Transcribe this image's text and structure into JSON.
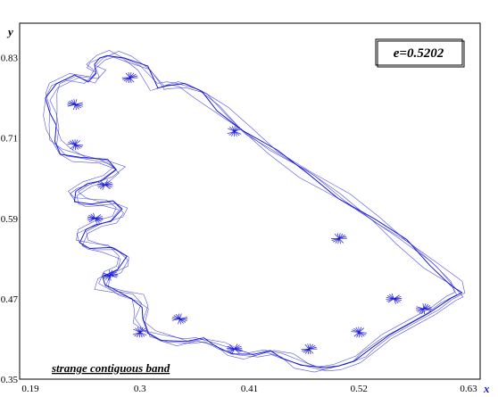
{
  "chart_data": {
    "type": "scatter",
    "title": "",
    "xlabel": "x",
    "ylabel": "y",
    "xlim": [
      0.19,
      0.63
    ],
    "ylim": [
      0.35,
      0.86
    ],
    "x_ticks": [
      "0.19",
      "0.3",
      "0.41",
      "0.52",
      "0.63"
    ],
    "y_ticks": [
      "0.35",
      "0.47",
      "0.59",
      "0.71",
      "0.83"
    ],
    "parameter_label": "e=0.5202",
    "annotation": "strange contiguous band",
    "grid": false,
    "series_color": "#1a1ad6",
    "series": [
      {
        "values_xy": [
          [
            0.318,
            0.785
          ],
          [
            0.305,
            0.815
          ],
          [
            0.285,
            0.83
          ],
          [
            0.27,
            0.835
          ],
          [
            0.258,
            0.828
          ],
          [
            0.252,
            0.818
          ],
          [
            0.258,
            0.808
          ],
          [
            0.25,
            0.795
          ],
          [
            0.232,
            0.802
          ],
          [
            0.215,
            0.79
          ],
          [
            0.208,
            0.772
          ],
          [
            0.21,
            0.748
          ],
          [
            0.213,
            0.727
          ],
          [
            0.215,
            0.705
          ],
          [
            0.223,
            0.688
          ],
          [
            0.24,
            0.68
          ],
          [
            0.265,
            0.676
          ],
          [
            0.278,
            0.664
          ],
          [
            0.264,
            0.648
          ],
          [
            0.245,
            0.64
          ],
          [
            0.234,
            0.629
          ],
          [
            0.237,
            0.617
          ],
          [
            0.252,
            0.612
          ],
          [
            0.27,
            0.614
          ],
          [
            0.282,
            0.604
          ],
          [
            0.274,
            0.588
          ],
          [
            0.255,
            0.58
          ],
          [
            0.243,
            0.571
          ],
          [
            0.241,
            0.555
          ],
          [
            0.252,
            0.547
          ],
          [
            0.27,
            0.545
          ],
          [
            0.285,
            0.532
          ],
          [
            0.28,
            0.515
          ],
          [
            0.264,
            0.504
          ],
          [
            0.262,
            0.489
          ],
          [
            0.277,
            0.481
          ],
          [
            0.295,
            0.472
          ],
          [
            0.302,
            0.457
          ],
          [
            0.3,
            0.438
          ],
          [
            0.309,
            0.42
          ],
          [
            0.324,
            0.41
          ],
          [
            0.345,
            0.405
          ],
          [
            0.362,
            0.41
          ],
          [
            0.378,
            0.401
          ],
          [
            0.394,
            0.389
          ],
          [
            0.412,
            0.385
          ],
          [
            0.43,
            0.392
          ],
          [
            0.445,
            0.384
          ],
          [
            0.462,
            0.371
          ],
          [
            0.482,
            0.365
          ],
          [
            0.5,
            0.37
          ],
          [
            0.518,
            0.379
          ],
          [
            0.53,
            0.394
          ],
          [
            0.548,
            0.414
          ],
          [
            0.57,
            0.432
          ],
          [
            0.592,
            0.45
          ],
          [
            0.61,
            0.469
          ],
          [
            0.622,
            0.478
          ],
          [
            0.615,
            0.492
          ],
          [
            0.592,
            0.52
          ],
          [
            0.565,
            0.556
          ],
          [
            0.535,
            0.59
          ],
          [
            0.502,
            0.622
          ],
          [
            0.468,
            0.656
          ],
          [
            0.435,
            0.69
          ],
          [
            0.405,
            0.722
          ],
          [
            0.38,
            0.752
          ],
          [
            0.36,
            0.778
          ],
          [
            0.343,
            0.79
          ],
          [
            0.33,
            0.79
          ],
          [
            0.318,
            0.785
          ]
        ],
        "name": ""
      }
    ]
  }
}
